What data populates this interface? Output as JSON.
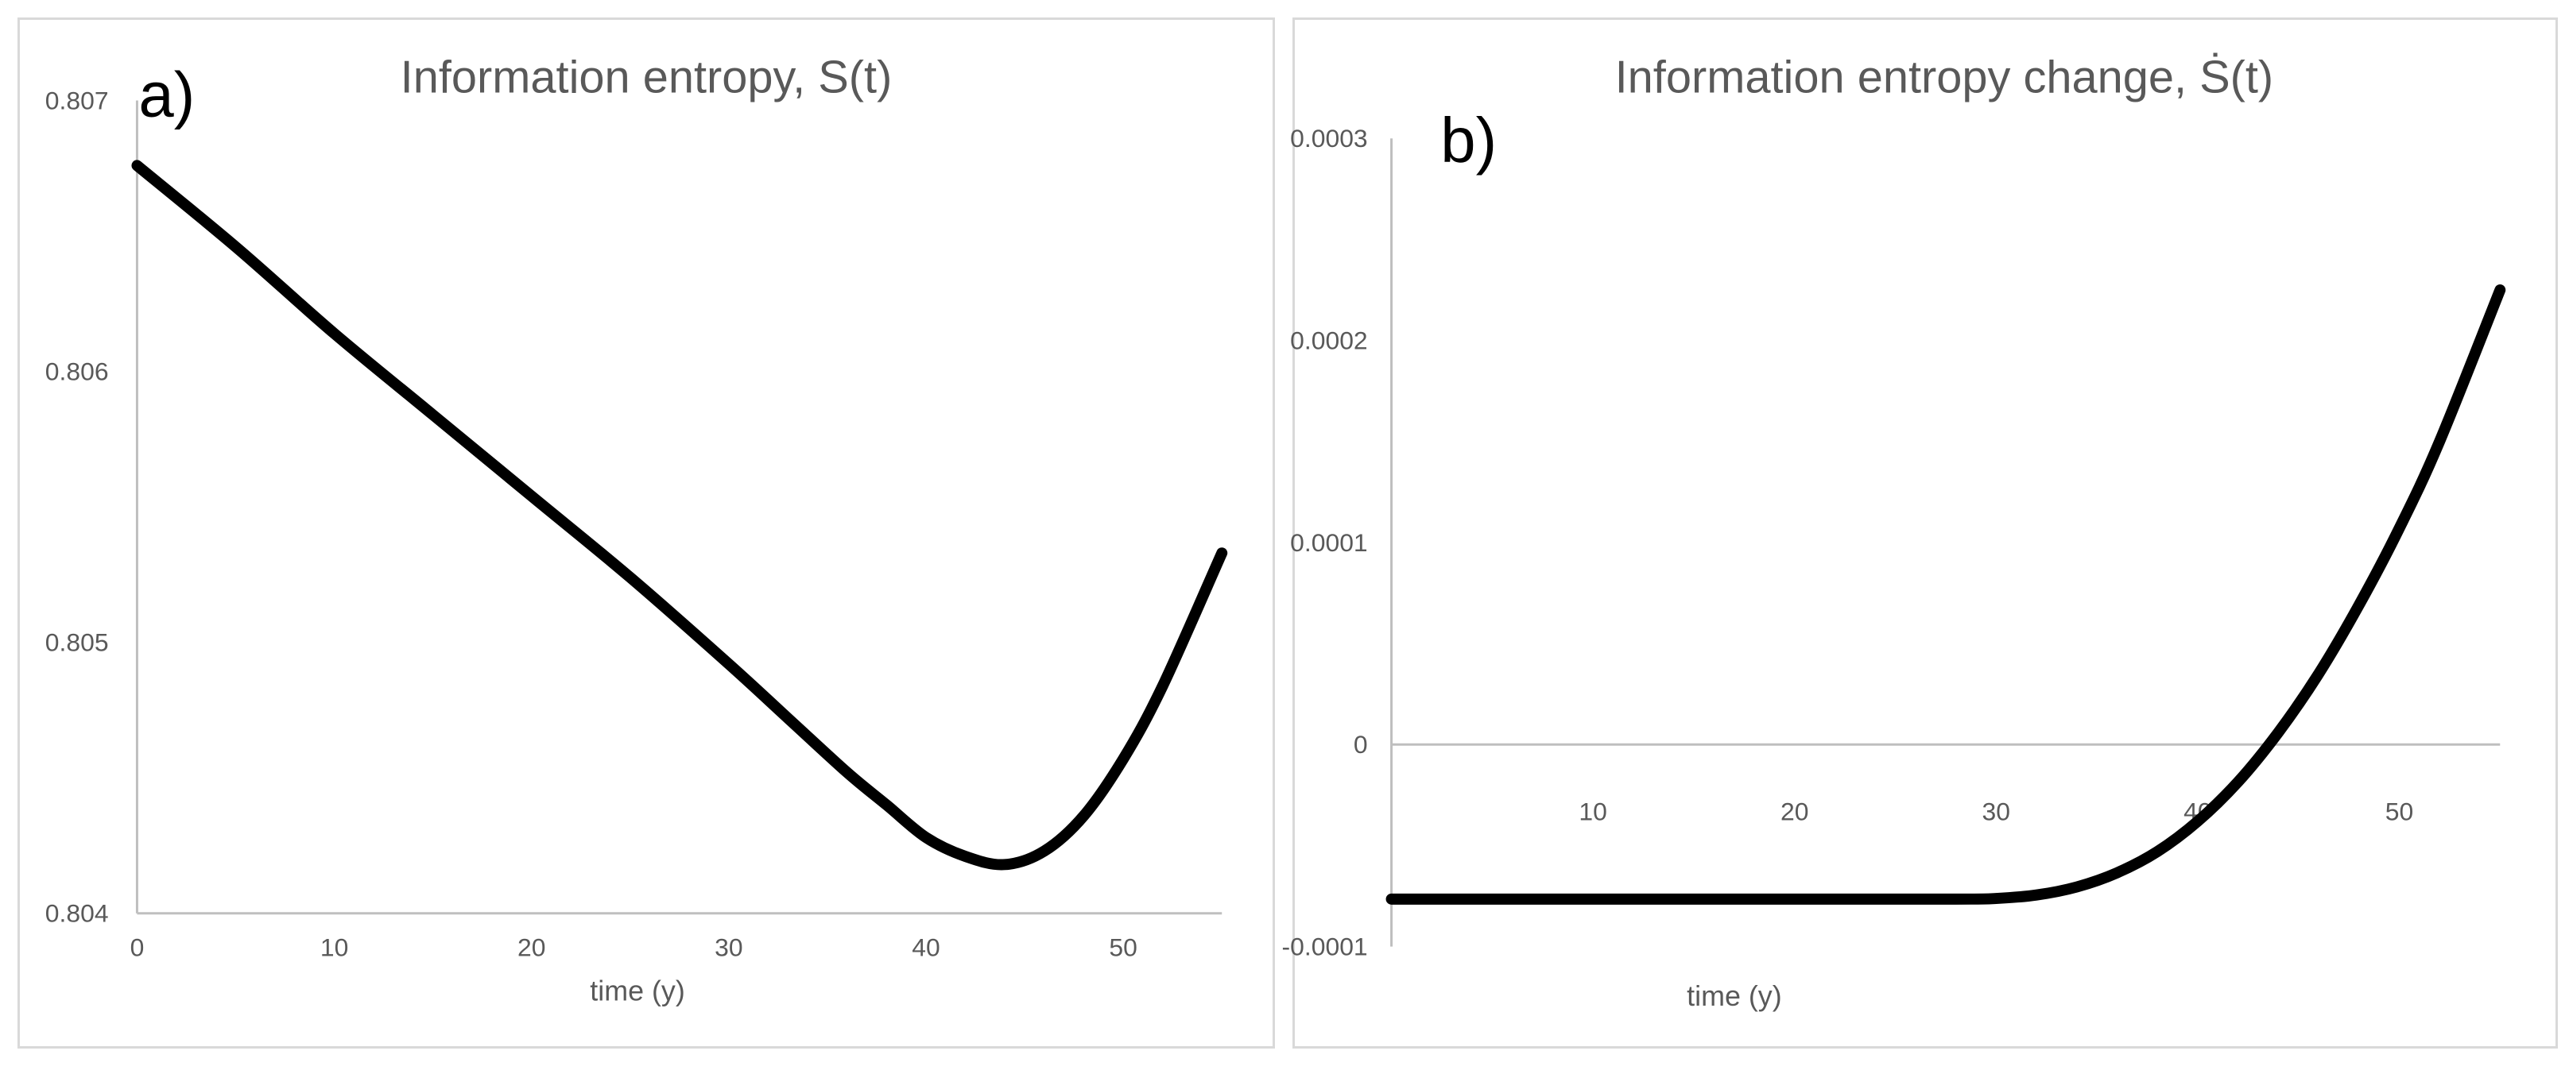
{
  "colors": {
    "series": "#000000",
    "axis": "#bfbfbf",
    "text": "#595959",
    "border": "#d9d9d9"
  },
  "chart_data": [
    {
      "type": "line",
      "panel_label": "a)",
      "title": "Information entropy, S(t)",
      "xlabel": "time (y)",
      "ylabel": "",
      "xlim": [
        0,
        55
      ],
      "ylim": [
        0.804,
        0.807
      ],
      "x_ticks": [
        {
          "value": 0,
          "label": "0"
        },
        {
          "value": 10,
          "label": "10"
        },
        {
          "value": 20,
          "label": "20"
        },
        {
          "value": 30,
          "label": "30"
        },
        {
          "value": 40,
          "label": "40"
        },
        {
          "value": 50,
          "label": "50"
        }
      ],
      "y_ticks": [
        {
          "value": 0.804,
          "label": "0.804"
        },
        {
          "value": 0.805,
          "label": "0.805"
        },
        {
          "value": 0.806,
          "label": "0.806"
        },
        {
          "value": 0.807,
          "label": "0.807"
        }
      ],
      "grid": false,
      "legend": "none",
      "series": [
        {
          "x": [
            0,
            5,
            10,
            15,
            20,
            25,
            30,
            33,
            36,
            38,
            40,
            42,
            44,
            46,
            48,
            50,
            52,
            55
          ],
          "y": [
            0.80676,
            0.80646,
            0.80614,
            0.80584,
            0.80554,
            0.80524,
            0.80492,
            0.80472,
            0.80452,
            0.8044,
            0.80428,
            0.80421,
            0.80418,
            0.80423,
            0.80436,
            0.80457,
            0.80484,
            0.80533
          ]
        }
      ]
    },
    {
      "type": "line",
      "panel_label": "b)",
      "title": "Information entropy change, Ṡ(t)",
      "xlabel": "time (y)",
      "ylabel": "",
      "xlim": [
        0,
        55
      ],
      "ylim": [
        -0.0001,
        0.0003
      ],
      "x_ticks": [
        {
          "value": 10,
          "label": "10"
        },
        {
          "value": 20,
          "label": "20"
        },
        {
          "value": 30,
          "label": "30"
        },
        {
          "value": 40,
          "label": "40"
        },
        {
          "value": 50,
          "label": "50"
        }
      ],
      "y_ticks": [
        {
          "value": -0.0001,
          "label": "-0.0001"
        },
        {
          "value": 0,
          "label": "0"
        },
        {
          "value": 0.0001,
          "label": "0.0001"
        },
        {
          "value": 0.0002,
          "label": "0.0002"
        },
        {
          "value": 0.0003,
          "label": "0.0003"
        }
      ],
      "grid": false,
      "legend": "none",
      "series": [
        {
          "x": [
            0,
            10,
            20,
            28,
            30,
            32,
            34,
            36,
            38,
            40,
            42,
            44,
            46,
            48,
            50,
            52,
            55
          ],
          "y": [
            -7.65e-05,
            -7.65e-05,
            -7.65e-05,
            -7.65e-05,
            -7.62e-05,
            -7.45e-05,
            -7.05e-05,
            -6.35e-05,
            -5.3e-05,
            -3.8e-05,
            -1.85e-05,
            6e-06,
            3.5e-05,
            6.9e-05,
            0.000107,
            0.00015,
            0.000225
          ]
        }
      ]
    }
  ]
}
